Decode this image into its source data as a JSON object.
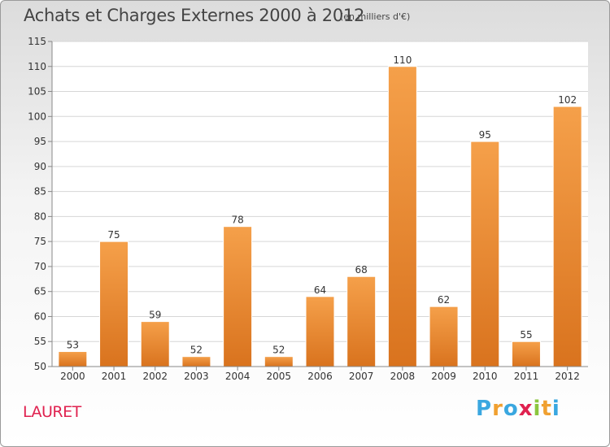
{
  "chart_data": {
    "type": "bar",
    "title": "Achats et Charges Externes 2000 à 2012",
    "subtitle": "(en milliers d'€)",
    "categories": [
      "2000",
      "2001",
      "2002",
      "2003",
      "2004",
      "2005",
      "2006",
      "2007",
      "2008",
      "2009",
      "2010",
      "2011",
      "2012"
    ],
    "values": [
      53,
      75,
      59,
      52,
      78,
      52,
      64,
      68,
      110,
      62,
      95,
      55,
      102
    ],
    "ylim": [
      50,
      115
    ],
    "yticks": [
      50,
      55,
      60,
      65,
      70,
      75,
      80,
      85,
      90,
      95,
      100,
      105,
      110,
      115
    ],
    "grid": true,
    "bar_color": "#f5a04a",
    "bar_color_dark": "#d9731e"
  },
  "place_name": "LAURET",
  "logo": {
    "letters": [
      "P",
      "r",
      "o",
      "x",
      "i",
      "t",
      "i"
    ],
    "colors": [
      "#3aa7e0",
      "#f0a030",
      "#3aa7e0",
      "#e0214f",
      "#8cc63f",
      "#f0a030",
      "#3aa7e0"
    ]
  }
}
